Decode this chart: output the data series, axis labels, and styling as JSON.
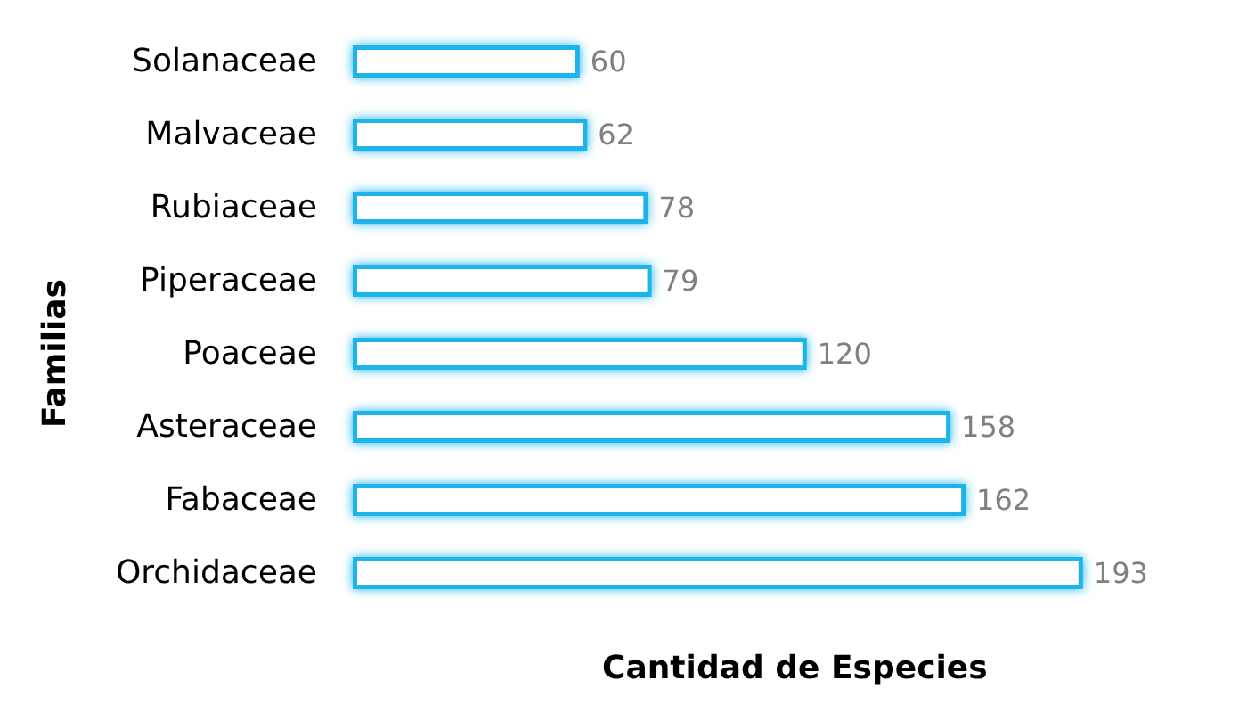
{
  "chart_data": {
    "type": "bar",
    "orientation": "horizontal",
    "xlabel": "Cantidad de Especies",
    "ylabel": "Familias",
    "categories": [
      "Solanaceae",
      "Malvaceae",
      "Rubiaceae",
      "Piperaceae",
      "Poaceae",
      "Asteraceae",
      "Fabaceae",
      "Orchidaceae"
    ],
    "values": [
      60,
      62,
      78,
      79,
      120,
      158,
      162,
      193
    ],
    "color": "#1eb4ea",
    "data_labels": true,
    "grid": false
  }
}
